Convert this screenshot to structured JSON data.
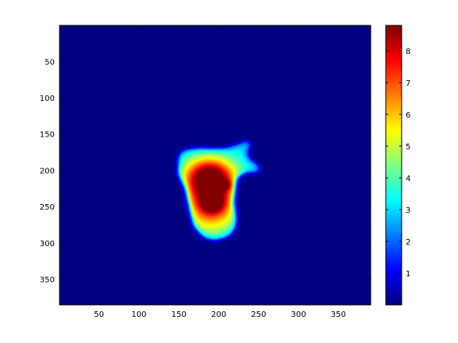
{
  "chart_data": {
    "type": "heatmap",
    "colormap": "jet",
    "x_range": [
      1,
      390
    ],
    "y_range": [
      1,
      385
    ],
    "y_direction": "top-to-bottom",
    "x_ticks": [
      50,
      100,
      150,
      200,
      250,
      300,
      350
    ],
    "y_ticks": [
      50,
      100,
      150,
      200,
      250,
      300,
      350
    ],
    "x_tick_labels": [
      "50",
      "100",
      "150",
      "200",
      "250",
      "300",
      "350"
    ],
    "y_tick_labels": [
      "50",
      "100",
      "150",
      "200",
      "250",
      "300",
      "350"
    ],
    "value_range": [
      0,
      8.8
    ],
    "colorbar_ticks": [
      1,
      2,
      3,
      4,
      5,
      6,
      7,
      8
    ],
    "colorbar_tick_labels": [
      "1",
      "2",
      "3",
      "4",
      "5",
      "6",
      "7",
      "8"
    ],
    "background_value": 0,
    "region_outline": [
      [
        150,
        178
      ],
      [
        158,
        172
      ],
      [
        175,
        170
      ],
      [
        190,
        171
      ],
      [
        210,
        170
      ],
      [
        228,
        163
      ],
      [
        237,
        158
      ],
      [
        242,
        164
      ],
      [
        236,
        177
      ],
      [
        240,
        187
      ],
      [
        250,
        192
      ],
      [
        253,
        199
      ],
      [
        248,
        205
      ],
      [
        236,
        202
      ],
      [
        222,
        210
      ],
      [
        220,
        226
      ],
      [
        218,
        245
      ],
      [
        222,
        268
      ],
      [
        220,
        283
      ],
      [
        212,
        292
      ],
      [
        196,
        297
      ],
      [
        183,
        294
      ],
      [
        170,
        278
      ],
      [
        165,
        252
      ],
      [
        160,
        225
      ],
      [
        150,
        205
      ]
    ],
    "region_level": 2.9,
    "components": [
      {
        "x": 188,
        "y": 207,
        "value": 5.0,
        "sx": 22,
        "sy": 18
      },
      {
        "x": 190,
        "y": 243,
        "value": 5.2,
        "sx": 26,
        "sy": 28
      },
      {
        "x": 190,
        "y": 213,
        "value": 2.7,
        "sx": 6,
        "sy": 6
      },
      {
        "x": 207,
        "y": 220,
        "value": 2.0,
        "sx": 6,
        "sy": 5
      },
      {
        "x": 192,
        "y": 245,
        "value": 4.0,
        "sx": 8,
        "sy": 8
      }
    ]
  }
}
